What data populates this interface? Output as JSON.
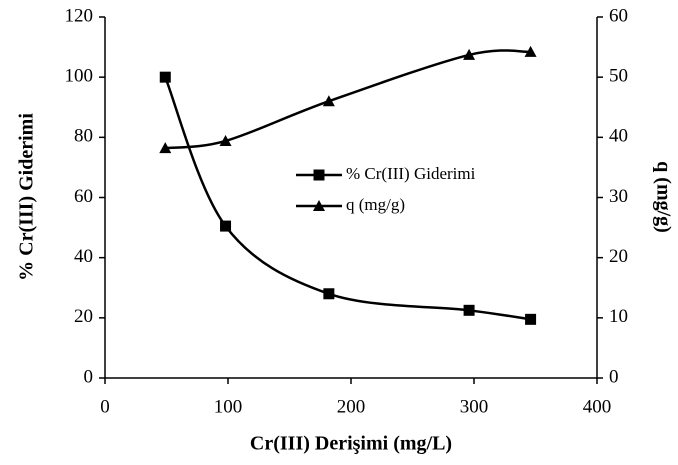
{
  "chart_data": {
    "type": "line",
    "x_label": "Cr(III) Derişimi (mg/L)",
    "y_label": "% Cr(III)  Giderimi",
    "y2_label": "q (mg/g)",
    "xlim": [
      0,
      400
    ],
    "xticks": [
      0,
      100,
      200,
      300,
      400
    ],
    "ylim": [
      0,
      120
    ],
    "yticks": [
      0,
      20,
      40,
      60,
      80,
      100,
      120
    ],
    "y2lim": [
      0,
      60
    ],
    "y2ticks": [
      0,
      10,
      20,
      30,
      40,
      50,
      60
    ],
    "legend": "center",
    "series": [
      {
        "name": "% Cr(III) Giderimi",
        "color": "#000000",
        "marker": "square",
        "x": [
          49,
          98,
          182,
          296,
          346
        ],
        "values": [
          100,
          50.5,
          28,
          22.5,
          19.5
        ]
      },
      {
        "name": "q (mg/g)",
        "color": "#000000",
        "marker": "triangle",
        "axis": "y2",
        "x": [
          49,
          98,
          182,
          296,
          346
        ],
        "values": [
          38.2,
          39.4,
          46,
          53.7,
          54.2
        ]
      }
    ]
  }
}
